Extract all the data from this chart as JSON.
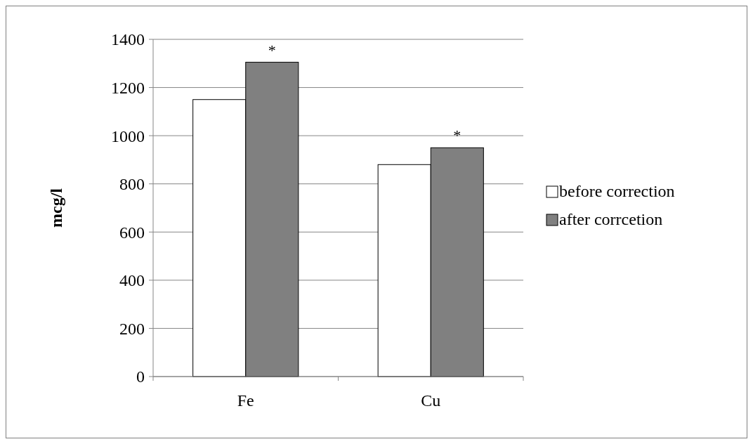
{
  "chart_data": {
    "type": "bar",
    "ylabel": "mcg/l",
    "categories": [
      "Fe",
      "Cu"
    ],
    "series": [
      {
        "name": "before correction",
        "color": "#ffffff",
        "values": [
          1150,
          880
        ]
      },
      {
        "name": "after corrcetion",
        "color": "#808080",
        "values": [
          1305,
          950
        ]
      }
    ],
    "ylim": [
      0,
      1400
    ],
    "yticks": [
      0,
      200,
      400,
      600,
      800,
      1000,
      1200,
      1400
    ],
    "grid": "y",
    "legend": "right",
    "annotations": [
      {
        "text": "*",
        "x": "Fe",
        "y": 1305
      },
      {
        "text": "*",
        "x": "Cu",
        "y": 950
      }
    ]
  }
}
